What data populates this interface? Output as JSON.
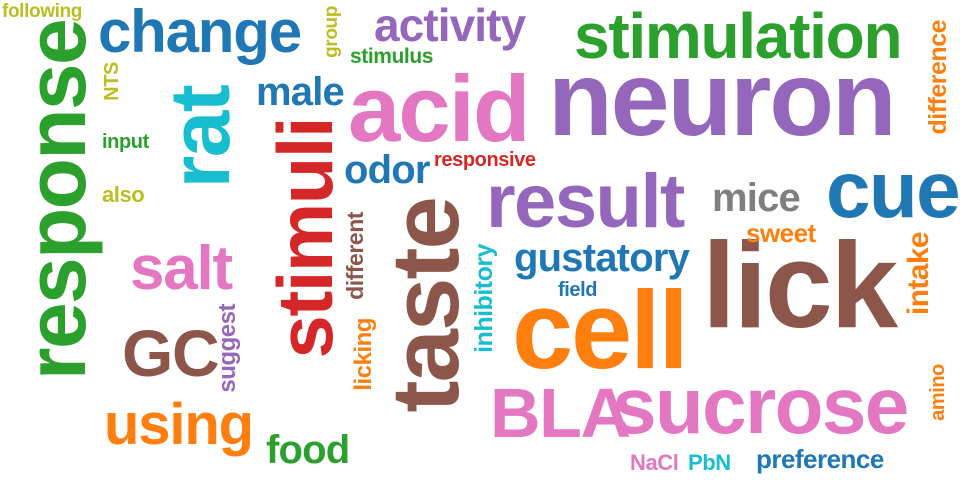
{
  "words": {
    "neuron": {
      "text": "neuron",
      "color": "#9467bd"
    },
    "taste": {
      "text": "taste",
      "color": "#8c564b"
    },
    "response": {
      "text": "response",
      "color": "#2ca02c"
    },
    "lick": {
      "text": "lick",
      "color": "#8c564b"
    },
    "stimuli": {
      "text": "stimuli",
      "color": "#d62728"
    },
    "acid": {
      "text": "acid",
      "color": "#e377c2"
    },
    "cell": {
      "text": "cell",
      "color": "#ff7f0e"
    },
    "rat": {
      "text": "rat",
      "color": "#17becf"
    },
    "sucrose": {
      "text": "sucrose",
      "color": "#e377c2"
    },
    "result": {
      "text": "result",
      "color": "#9467bd"
    },
    "stimulation": {
      "text": "stimulation",
      "color": "#2ca02c"
    },
    "change": {
      "text": "change",
      "color": "#1f77b4"
    },
    "cue": {
      "text": "cue",
      "color": "#1f77b4"
    },
    "gc": {
      "text": "GC",
      "color": "#8c564b"
    },
    "bla": {
      "text": "BLA",
      "color": "#e377c2"
    },
    "salt": {
      "text": "salt",
      "color": "#e377c2"
    },
    "using": {
      "text": "using",
      "color": "#ff7f0e"
    },
    "activity": {
      "text": "activity",
      "color": "#9467bd"
    },
    "gustatory": {
      "text": "gustatory",
      "color": "#1f77b4"
    },
    "food": {
      "text": "food",
      "color": "#2ca02c"
    },
    "intake": {
      "text": "intake",
      "color": "#ff7f0e"
    },
    "mice": {
      "text": "mice",
      "color": "#7f7f7f"
    },
    "odor": {
      "text": "odor",
      "color": "#1f77b4"
    },
    "male": {
      "text": "male",
      "color": "#1f77b4"
    },
    "difference": {
      "text": "difference",
      "color": "#ff7f0e"
    },
    "inhibitory": {
      "text": "inhibitory",
      "color": "#17becf"
    },
    "preference": {
      "text": "preference",
      "color": "#1f77b4"
    },
    "sweet": {
      "text": "sweet",
      "color": "#ff7f0e"
    },
    "different": {
      "text": "different",
      "color": "#8c564b"
    },
    "licking": {
      "text": "licking",
      "color": "#ff7f0e"
    },
    "suggest": {
      "text": "suggest",
      "color": "#9467bd"
    },
    "responsive": {
      "text": "responsive",
      "color": "#d62728"
    },
    "stimulus": {
      "text": "stimulus",
      "color": "#2ca02c"
    },
    "nacl": {
      "text": "NaCl",
      "color": "#e377c2"
    },
    "pbn": {
      "text": "PbN",
      "color": "#17becf"
    },
    "amino": {
      "text": "amino",
      "color": "#ff7f0e"
    },
    "following": {
      "text": "following",
      "color": "#bcbd22"
    },
    "group": {
      "text": "group",
      "color": "#bcbd22"
    },
    "nts": {
      "text": "NTS",
      "color": "#bcbd22"
    },
    "input": {
      "text": "input",
      "color": "#2ca02c"
    },
    "also": {
      "text": "also",
      "color": "#bcbd22"
    },
    "field": {
      "text": "field",
      "color": "#1f77b4"
    }
  }
}
